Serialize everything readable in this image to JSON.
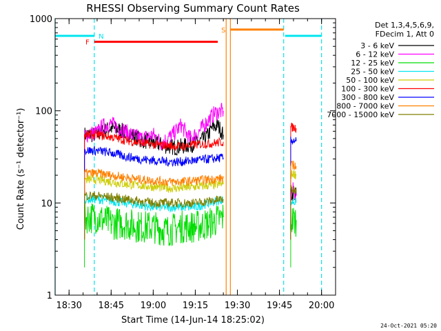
{
  "chart_data": {
    "type": "line",
    "title": "RHESSI Observing Summary Count Rates",
    "xlabel": "Start Time (14-Jun-14 18:25:02)",
    "ylabel": "Count Rate (s⁻¹ detector⁻¹)",
    "yscale": "log",
    "ylim": [
      1,
      1000
    ],
    "xlim": [
      "18:25:02",
      "20:05:00"
    ],
    "x_ticks": [
      "18:30",
      "18:45",
      "19:00",
      "19:15",
      "19:30",
      "19:45",
      "20:00"
    ],
    "y_ticks": [
      "1",
      "10",
      "100",
      "1000"
    ],
    "legend_header": [
      "Det 1,3,4,5,6,9,",
      "FDecim 1, Att 0"
    ],
    "legend_placement": "right",
    "date_stamp": "24-Oct-2021 05:20",
    "flags": [
      {
        "label": "N",
        "color": "#00e5ee",
        "intervals": [
          [
            "18:25:02",
            "18:39:00"
          ],
          [
            "19:47:00",
            "20:00:00"
          ]
        ],
        "y": 650
      },
      {
        "label": "F",
        "color": "#ff0000",
        "intervals": [
          [
            "18:39:00",
            "19:23:00"
          ]
        ],
        "y": 560
      },
      {
        "label": "S",
        "color": "#ff8000",
        "intervals": [
          [
            "19:27:30",
            "19:46:30"
          ]
        ],
        "y": 760
      }
    ],
    "vlines": [
      {
        "time": "18:25:02",
        "color": "#00e5ee",
        "style": "solid"
      },
      {
        "time": "18:39:00",
        "color": "#00e5ee",
        "style": "dashed"
      },
      {
        "time": "19:26:00",
        "color": "#ff8000",
        "style": "solid"
      },
      {
        "time": "19:27:30",
        "color": "#ff8000",
        "style": "solid"
      },
      {
        "time": "19:46:30",
        "color": "#00e5ee",
        "style": "dashed"
      },
      {
        "time": "20:00:00",
        "color": "#00e5ee",
        "style": "dashed"
      }
    ],
    "series": [
      {
        "name": "3 - 6 keV",
        "color": "#000000",
        "segments": [
          [
            [
              "18:35:30",
              55
            ],
            [
              "18:40",
              55
            ],
            [
              "18:42",
              60
            ],
            [
              "18:45",
              65
            ],
            [
              "18:48",
              62
            ],
            [
              "18:52",
              55
            ],
            [
              "18:56",
              48
            ],
            [
              "19:00",
              45
            ],
            [
              "19:04",
              42
            ],
            [
              "19:08",
              40
            ],
            [
              "19:12",
              42
            ],
            [
              "19:16",
              45
            ],
            [
              "19:19",
              52
            ],
            [
              "19:21",
              65
            ],
            [
              "19:23",
              70
            ],
            [
              "19:25",
              55
            ]
          ],
          [
            [
              "19:49",
              12
            ],
            [
              "19:50",
              13
            ],
            [
              "19:51",
              12
            ]
          ]
        ]
      },
      {
        "name": "6 - 12 keV",
        "color": "#ff00ff",
        "segments": [
          [
            [
              "18:35:30",
              55
            ],
            [
              "18:40",
              58
            ],
            [
              "18:42",
              68
            ],
            [
              "18:45",
              72
            ],
            [
              "18:48",
              65
            ],
            [
              "18:52",
              55
            ],
            [
              "18:56",
              50
            ],
            [
              "19:00",
              55
            ],
            [
              "19:03",
              45
            ],
            [
              "19:07",
              55
            ],
            [
              "19:10",
              70
            ],
            [
              "19:13",
              50
            ],
            [
              "19:16",
              58
            ],
            [
              "19:19",
              75
            ],
            [
              "19:22",
              95
            ],
            [
              "19:25",
              100
            ]
          ],
          [
            [
              "19:49",
              12
            ],
            [
              "19:50",
              14
            ],
            [
              "19:51",
              12
            ]
          ]
        ]
      },
      {
        "name": "12 - 25 keV",
        "color": "#00dd00",
        "segments": [
          [
            [
              "18:35:30",
              7
            ],
            [
              "18:40",
              7
            ],
            [
              "18:45",
              6
            ],
            [
              "18:50",
              6
            ],
            [
              "18:55",
              5.5
            ],
            [
              "19:00",
              5.5
            ],
            [
              "19:05",
              5
            ],
            [
              "19:10",
              5.5
            ],
            [
              "19:15",
              5.5
            ],
            [
              "19:20",
              6
            ],
            [
              "19:25",
              7
            ]
          ],
          [
            [
              "19:49",
              6.5
            ],
            [
              "19:50",
              6.5
            ],
            [
              "19:51",
              6.5
            ]
          ]
        ]
      },
      {
        "name": "25 - 50 keV",
        "color": "#00e5ee",
        "segments": [
          [
            [
              "18:35:30",
              11
            ],
            [
              "18:40",
              11
            ],
            [
              "18:45",
              10.5
            ],
            [
              "18:50",
              10
            ],
            [
              "18:55",
              9.5
            ],
            [
              "19:00",
              9
            ],
            [
              "19:05",
              9
            ],
            [
              "19:10",
              9
            ],
            [
              "19:15",
              9
            ],
            [
              "19:20",
              10
            ],
            [
              "19:25",
              11
            ]
          ],
          [
            [
              "19:49",
              10
            ],
            [
              "19:50",
              10.5
            ],
            [
              "19:51",
              10
            ]
          ]
        ]
      },
      {
        "name": "50 - 100 keV",
        "color": "#cccc00",
        "segments": [
          [
            [
              "18:35:30",
              18
            ],
            [
              "18:40",
              18
            ],
            [
              "18:45",
              17
            ],
            [
              "18:50",
              16
            ],
            [
              "18:55",
              15.5
            ],
            [
              "19:00",
              15
            ],
            [
              "19:05",
              14.5
            ],
            [
              "19:10",
              14.5
            ],
            [
              "19:15",
              15
            ],
            [
              "19:20",
              15.5
            ],
            [
              "19:25",
              16
            ]
          ],
          [
            [
              "19:49",
              20
            ],
            [
              "19:50",
              21
            ],
            [
              "19:51",
              20
            ]
          ]
        ]
      },
      {
        "name": "100 - 300 keV",
        "color": "#ff0000",
        "segments": [
          [
            [
              "18:35:30",
              55
            ],
            [
              "18:40",
              55
            ],
            [
              "18:45",
              52
            ],
            [
              "18:50",
              48
            ],
            [
              "18:55",
              45
            ],
            [
              "19:00",
              43
            ],
            [
              "19:05",
              42
            ],
            [
              "19:10",
              41
            ],
            [
              "19:15",
              43
            ],
            [
              "19:20",
              44
            ],
            [
              "19:25",
              46
            ]
          ],
          [
            [
              "19:49",
              66
            ],
            [
              "19:50",
              66
            ],
            [
              "19:51",
              65
            ]
          ]
        ]
      },
      {
        "name": "300 - 800 keV",
        "color": "#0000ff",
        "segments": [
          [
            [
              "18:35:30",
              37
            ],
            [
              "18:40",
              37
            ],
            [
              "18:45",
              35
            ],
            [
              "18:50",
              32
            ],
            [
              "18:55",
              30
            ],
            [
              "19:00",
              29
            ],
            [
              "19:05",
              28
            ],
            [
              "19:10",
              28
            ],
            [
              "19:15",
              29
            ],
            [
              "19:20",
              30
            ],
            [
              "19:25",
              31
            ]
          ],
          [
            [
              "19:49",
              47
            ],
            [
              "19:50",
              48
            ],
            [
              "19:51",
              47
            ]
          ]
        ]
      },
      {
        "name": "800 - 7000 keV",
        "color": "#ff8000",
        "segments": [
          [
            [
              "18:35:30",
              21
            ],
            [
              "18:40",
              21
            ],
            [
              "18:45",
              20
            ],
            [
              "18:50",
              19
            ],
            [
              "18:55",
              18
            ],
            [
              "19:00",
              17.5
            ],
            [
              "19:05",
              17
            ],
            [
              "19:10",
              17
            ],
            [
              "19:15",
              17.5
            ],
            [
              "19:20",
              18
            ],
            [
              "19:25",
              18.5
            ]
          ],
          [
            [
              "19:49",
              25
            ],
            [
              "19:50",
              26
            ],
            [
              "19:51",
              25
            ]
          ]
        ]
      },
      {
        "name": "7000 - 15000 keV",
        "color": "#808000",
        "segments": [
          [
            [
              "18:35:30",
              12
            ],
            [
              "18:40",
              12
            ],
            [
              "18:45",
              11.5
            ],
            [
              "18:50",
              11
            ],
            [
              "18:55",
              10.5
            ],
            [
              "19:00",
              10
            ],
            [
              "19:05",
              10
            ],
            [
              "19:10",
              10
            ],
            [
              "19:15",
              10
            ],
            [
              "19:20",
              10.5
            ],
            [
              "19:25",
              11
            ]
          ],
          [
            [
              "19:49",
              14
            ],
            [
              "19:50",
              14
            ],
            [
              "19:51",
              14
            ]
          ]
        ]
      }
    ]
  }
}
